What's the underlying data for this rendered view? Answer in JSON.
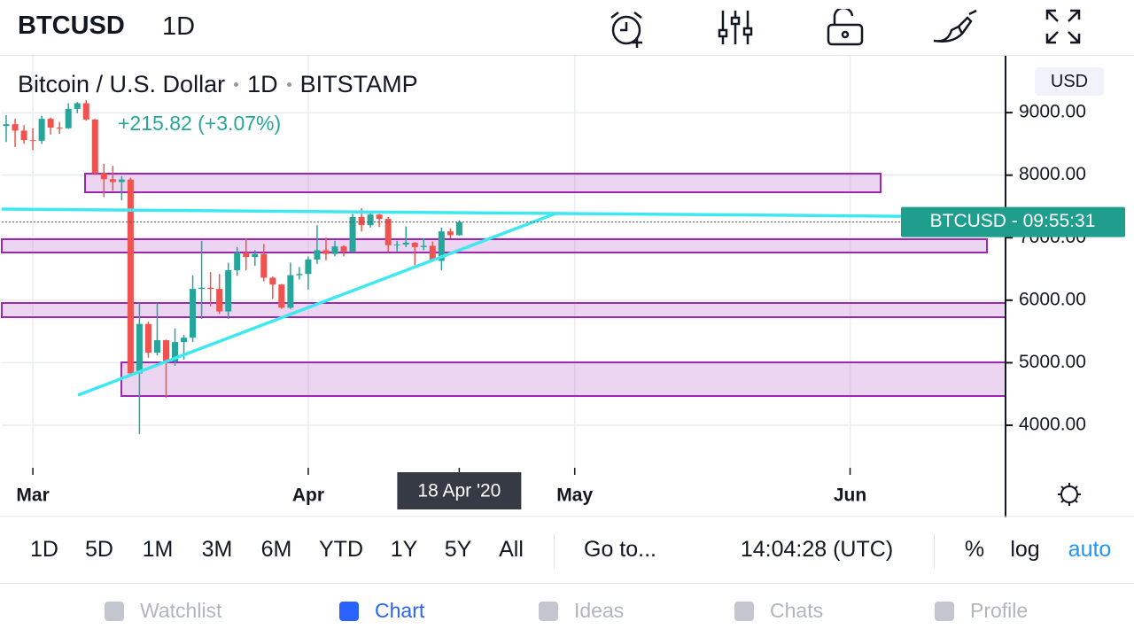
{
  "header": {
    "symbol": "BTCUSD",
    "interval": "1D"
  },
  "chart_data": {
    "type": "candlestick",
    "legend": [
      "Bitcoin / U.S. Dollar",
      "1D",
      "BITSTAMP"
    ],
    "change": "+215.82 (+3.07%)",
    "currency": "USD",
    "price_label": "BTCUSD - 09:55:31",
    "categories": [
      null,
      null,
      null,
      "Mar",
      null,
      null,
      null,
      null,
      null,
      null,
      null,
      null,
      null,
      null,
      null,
      null,
      null,
      null,
      null,
      null,
      null,
      null,
      null,
      null,
      null,
      null,
      null,
      null,
      null,
      null,
      null,
      null,
      null,
      null,
      "Apr",
      null,
      null,
      null,
      null,
      null,
      null,
      null,
      null,
      null,
      null,
      null,
      null,
      null,
      null,
      null,
      null,
      "18 Apr '20",
      null,
      null,
      null,
      null,
      null,
      null,
      null,
      null,
      null,
      null,
      null,
      null,
      "May",
      null,
      null,
      null,
      null,
      null,
      null,
      null,
      null,
      null,
      null,
      null,
      null,
      null,
      null,
      null,
      null,
      null,
      null,
      null,
      null,
      null,
      null,
      null,
      null,
      null,
      null,
      null,
      null,
      null,
      null,
      "Jun",
      null,
      null,
      null,
      null,
      null,
      null,
      null,
      null,
      null,
      null,
      null,
      null,
      null,
      null,
      null,
      null,
      null
    ],
    "open": [
      8785,
      8815,
      8712,
      8560,
      8550,
      8900,
      8760,
      8750,
      9060,
      9150,
      8890,
      8030,
      7935,
      7890,
      7930,
      4830,
      5620,
      5160,
      5360,
      5020,
      5330,
      5400,
      6180,
      6200,
      6180,
      5820,
      6480,
      6760,
      6690,
      6740,
      6360,
      6250,
      5880,
      6400,
      6420,
      6650,
      6800,
      6740,
      6860,
      6780,
      7330,
      7200,
      7370,
      7300,
      6880,
      6890,
      6920,
      6850,
      6870,
      6630,
      7100,
      7040,
      null,
      null,
      null,
      null,
      null,
      null,
      null,
      null,
      null,
      null,
      null,
      null,
      null,
      null,
      null,
      null,
      null,
      null,
      null,
      null,
      null,
      null,
      null,
      null,
      null,
      null,
      null,
      null,
      null,
      null,
      null,
      null,
      null,
      null,
      null,
      null,
      null,
      null,
      null,
      null,
      null,
      null,
      null,
      null,
      null,
      null,
      null,
      null,
      null,
      null,
      null,
      null,
      null,
      null,
      null,
      null,
      null,
      null,
      null,
      null,
      null
    ],
    "high": [
      8960,
      8900,
      8800,
      8750,
      8950,
      8920,
      8850,
      9150,
      9170,
      9200,
      8900,
      8180,
      8150,
      7980,
      7960,
      5950,
      5660,
      5950,
      5370,
      5550,
      5450,
      6400,
      6950,
      6450,
      6420,
      6600,
      6850,
      6990,
      6800,
      6900,
      6380,
      6260,
      6600,
      6530,
      6700,
      7200,
      7000,
      6950,
      6880,
      7380,
      7470,
      7420,
      7380,
      7330,
      6950,
      7180,
      6930,
      6990,
      6940,
      7160,
      7150,
      7280,
      null,
      null,
      null,
      null,
      null,
      null,
      null,
      null,
      null,
      null,
      null,
      null,
      null,
      null,
      null,
      null,
      null,
      null,
      null,
      null,
      null,
      null,
      null,
      null,
      null,
      null,
      null,
      null,
      null,
      null,
      null,
      null,
      null,
      null,
      null,
      null,
      null,
      null,
      null,
      null,
      null,
      null,
      null,
      null,
      null,
      null,
      null,
      null,
      null,
      null,
      null,
      null,
      null,
      null,
      null,
      null,
      null,
      null,
      null,
      null,
      null
    ],
    "low": [
      8530,
      8450,
      8500,
      8400,
      8500,
      8650,
      8660,
      8740,
      8990,
      8870,
      8000,
      7650,
      7750,
      7600,
      4780,
      3860,
      5080,
      5120,
      4440,
      4950,
      5050,
      5330,
      5700,
      5900,
      5780,
      5700,
      6390,
      6480,
      6550,
      6300,
      6020,
      5860,
      5860,
      6330,
      6170,
      6580,
      6640,
      6700,
      6700,
      6770,
      7100,
      7160,
      7170,
      6770,
      6780,
      6850,
      6560,
      6800,
      6620,
      6480,
      6990,
      7030,
      null,
      null,
      null,
      null,
      null,
      null,
      null,
      null,
      null,
      null,
      null,
      null,
      null,
      null,
      null,
      null,
      null,
      null,
      null,
      null,
      null,
      null,
      null,
      null,
      null,
      null,
      null,
      null,
      null,
      null,
      null,
      null,
      null,
      null,
      null,
      null,
      null,
      null,
      null,
      null,
      null,
      null,
      null,
      null,
      null,
      null,
      null,
      null,
      null,
      null,
      null,
      null,
      null,
      null,
      null,
      null,
      null,
      null,
      null,
      null,
      null
    ],
    "close": [
      8815,
      8712,
      8560,
      8550,
      8900,
      8760,
      8750,
      9060,
      9150,
      8890,
      8030,
      7935,
      7890,
      7930,
      4830,
      5620,
      5160,
      5360,
      5020,
      5330,
      5400,
      6180,
      6200,
      6180,
      5820,
      6480,
      6760,
      6690,
      6740,
      6360,
      6250,
      5880,
      6400,
      6420,
      6650,
      6800,
      6740,
      6860,
      6780,
      7330,
      7200,
      7370,
      7300,
      6880,
      6890,
      6920,
      6850,
      6870,
      6630,
      7100,
      7040,
      7250,
      null,
      null,
      null,
      null,
      null,
      null,
      null,
      null,
      null,
      null,
      null,
      null,
      null,
      null,
      null,
      null,
      null,
      null,
      null,
      null,
      null,
      null,
      null,
      null,
      null,
      null,
      null,
      null,
      null,
      null,
      null,
      null,
      null,
      null,
      null,
      null,
      null,
      null,
      null,
      null,
      null,
      null,
      null,
      null,
      null,
      null,
      null,
      null,
      null,
      null,
      null,
      null,
      null,
      null,
      null,
      null,
      null,
      null,
      null,
      null,
      null
    ],
    "up_color": "#26a69a",
    "down_color": "#ef5350",
    "ylim": [
      3320,
      9880
    ],
    "yticks": [
      {
        "value": 4000,
        "label": "4000.00"
      },
      {
        "value": 5000,
        "label": "5000.00"
      },
      {
        "value": 6000,
        "label": "6000.00"
      },
      {
        "value": 7000,
        "label": "7000.00"
      },
      {
        "value": 8000,
        "label": "8000.00"
      },
      {
        "value": 9000,
        "label": "9000.00"
      }
    ],
    "grid": true
  },
  "range_bar": {
    "ranges": [
      "1D",
      "5D",
      "1M",
      "3M",
      "6M",
      "YTD",
      "1Y",
      "5Y",
      "All"
    ],
    "goto": "Go to...",
    "time": "14:04:28 (UTC)",
    "scales": [
      "%",
      "log",
      "auto"
    ],
    "active_scale": 2
  },
  "tabs": [
    "Watchlist",
    "Chart",
    "Ideas",
    "Chats",
    "Profile"
  ],
  "active_tab": 1
}
